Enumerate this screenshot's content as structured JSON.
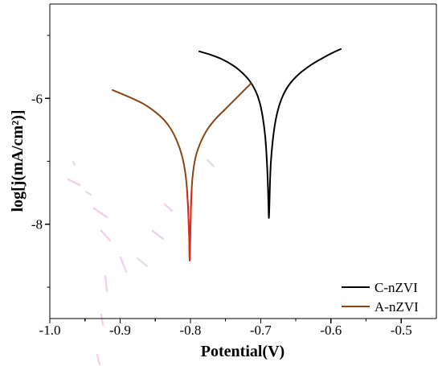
{
  "chart_data": {
    "type": "line",
    "xlabel": "Potential(V)",
    "ylabel": "log[j(mA/cm²)]",
    "xlim": [
      -1.0,
      -0.45
    ],
    "ylim": [
      -9.5,
      -4.5
    ],
    "xticks": [
      -1.0,
      -0.9,
      -0.8,
      -0.7,
      -0.6,
      -0.5
    ],
    "xtick_labels": [
      "-1.0",
      "-0.9",
      "-0.8",
      "-0.7",
      "-0.6",
      "-0.5"
    ],
    "yticks": [
      -8,
      -6
    ],
    "ytick_labels": [
      "-8",
      "-6"
    ],
    "grid": false,
    "legend": "bottom-right",
    "series": [
      {
        "name": "C-nZVI",
        "color": "#000000",
        "x": [
          -0.7873,
          -0.7713,
          -0.7541,
          -0.7381,
          -0.7256,
          -0.7153,
          -0.7073,
          -0.7015,
          -0.697,
          -0.6935,
          -0.6913,
          -0.6898,
          -0.689,
          -0.6883,
          -0.6875,
          -0.6867,
          -0.6855,
          -0.6832,
          -0.6798,
          -0.6752,
          -0.6684,
          -0.6592,
          -0.6467,
          -0.6306,
          -0.6135,
          -0.5986,
          -0.586
        ],
        "y": [
          -5.254,
          -5.306,
          -5.382,
          -5.485,
          -5.6,
          -5.728,
          -5.881,
          -6.06,
          -6.303,
          -6.61,
          -6.968,
          -7.352,
          -7.659,
          -7.902,
          -7.659,
          -7.326,
          -7.019,
          -6.712,
          -6.418,
          -6.175,
          -5.958,
          -5.779,
          -5.625,
          -5.485,
          -5.37,
          -5.28,
          -5.216
        ]
      },
      {
        "name": "A-nZVI",
        "color": "#8B4513",
        "x": [
          -0.9108,
          -0.8971,
          -0.8811,
          -0.8651,
          -0.8502,
          -0.8376,
          -0.8273,
          -0.8193,
          -0.8125,
          -0.8079,
          -0.805,
          -0.8031,
          -0.8018,
          -0.801,
          -0.8001,
          -0.7993,
          -0.7981,
          -0.7959,
          -0.7919,
          -0.785,
          -0.7759,
          -0.7644,
          -0.7507,
          -0.7358,
          -0.7233,
          -0.7141
        ],
        "y": [
          -5.868,
          -5.932,
          -6.009,
          -6.098,
          -6.214,
          -6.341,
          -6.495,
          -6.674,
          -6.891,
          -7.134,
          -7.416,
          -7.786,
          -8.183,
          -8.579,
          -8.183,
          -7.786,
          -7.428,
          -7.147,
          -6.904,
          -6.687,
          -6.495,
          -6.329,
          -6.175,
          -6.009,
          -5.868,
          -5.766
        ]
      },
      {
        "color": "#E3241E",
        "x": [
          -0.8049,
          -0.8031,
          -0.8018,
          -0.801,
          -0.8001,
          -0.7993,
          -0.7982
        ],
        "y": [
          -7.454,
          -7.786,
          -8.183,
          -8.579,
          -8.183,
          -7.786,
          -7.454
        ]
      }
    ]
  }
}
